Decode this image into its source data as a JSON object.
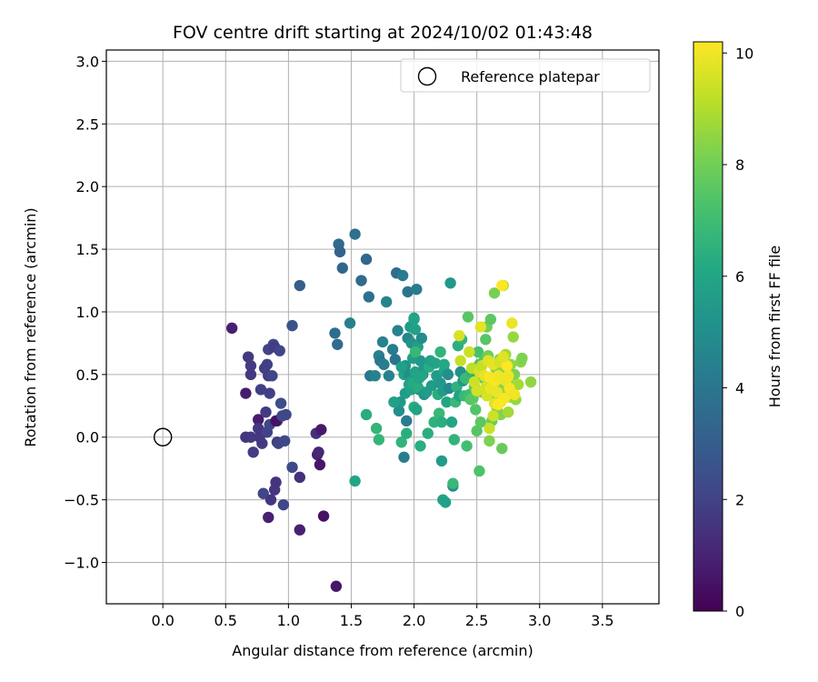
{
  "chart_data": {
    "type": "scatter",
    "title": "FOV centre drift starting at 2024/10/02 01:43:48",
    "xlabel": "Angular distance from reference (arcmin)",
    "ylabel": "Rotation from reference (arcmin)",
    "xlim": [
      -0.45,
      3.95
    ],
    "ylim": [
      -1.33,
      3.09
    ],
    "xticks": [
      "0.0",
      "0.5",
      "1.0",
      "1.5",
      "2.0",
      "2.5",
      "3.0",
      "3.5"
    ],
    "xtick_values": [
      0.0,
      0.5,
      1.0,
      1.5,
      2.0,
      2.5,
      3.0,
      3.5
    ],
    "yticks": [
      "−1.0",
      "−0.5",
      "0.0",
      "0.5",
      "1.0",
      "1.5",
      "2.0",
      "2.5",
      "3.0"
    ],
    "ytick_values": [
      -1.0,
      -0.5,
      0.0,
      0.5,
      1.0,
      1.5,
      2.0,
      2.5,
      3.0
    ],
    "grid": true,
    "legend": {
      "placement": "top-right",
      "entries": [
        {
          "label": "Reference platepar",
          "marker": "open-circle",
          "x": 0.0,
          "y": 0.0
        }
      ]
    },
    "colorbar": {
      "label": "Hours from first FF file",
      "range": [
        0,
        10.2
      ],
      "ticks": [
        "0",
        "2",
        "4",
        "6",
        "8",
        "10"
      ],
      "tick_values": [
        0,
        2,
        4,
        6,
        8,
        10
      ],
      "colormap": "viridis"
    },
    "points_fields": [
      "x",
      "y",
      "hours"
    ],
    "points": [
      [
        0.55,
        0.87,
        0.9
      ],
      [
        0.66,
        0.35,
        0.8
      ],
      [
        0.68,
        0.64,
        1.7
      ],
      [
        0.7,
        0.57,
        1.8
      ],
      [
        0.7,
        0.5,
        1.7
      ],
      [
        0.66,
        0.0,
        1.6
      ],
      [
        0.7,
        0.0,
        1.7
      ],
      [
        0.72,
        -0.12,
        1.8
      ],
      [
        0.76,
        0.14,
        0.8
      ],
      [
        0.76,
        0.07,
        1.6
      ],
      [
        0.77,
        0.0,
        1.6
      ],
      [
        0.78,
        0.38,
        1.9
      ],
      [
        0.79,
        -0.05,
        1.7
      ],
      [
        0.8,
        -0.45,
        2.1
      ],
      [
        0.81,
        0.55,
        1.9
      ],
      [
        0.82,
        0.2,
        1.8
      ],
      [
        0.83,
        0.04,
        2.0
      ],
      [
        0.83,
        0.58,
        1.9
      ],
      [
        0.84,
        0.49,
        1.8
      ],
      [
        0.84,
        0.7,
        2.0
      ],
      [
        0.84,
        -0.64,
        0.9
      ],
      [
        0.85,
        0.35,
        1.9
      ],
      [
        0.85,
        0.1,
        2.2
      ],
      [
        0.86,
        -0.5,
        1.6
      ],
      [
        0.87,
        0.49,
        2.1
      ],
      [
        0.88,
        0.74,
        2.2
      ],
      [
        0.89,
        0.72,
        1.8
      ],
      [
        0.89,
        -0.42,
        1.6
      ],
      [
        0.9,
        -0.36,
        1.5
      ],
      [
        0.91,
        0.13,
        1.4
      ],
      [
        0.9,
        0.13,
        0.5
      ],
      [
        0.91,
        -0.04,
        1.8
      ],
      [
        0.92,
        -0.05,
        2.0
      ],
      [
        0.93,
        0.69,
        2.1
      ],
      [
        0.94,
        0.27,
        2.4
      ],
      [
        0.95,
        0.17,
        2.2
      ],
      [
        0.96,
        -0.54,
        2.1
      ],
      [
        0.97,
        -0.03,
        2.2
      ],
      [
        0.98,
        0.18,
        2.2
      ],
      [
        1.03,
        0.89,
        2.6
      ],
      [
        1.03,
        -0.24,
        2.3
      ],
      [
        1.09,
        1.21,
        3.0
      ],
      [
        1.09,
        -0.32,
        1.4
      ],
      [
        1.09,
        -0.74,
        0.9
      ],
      [
        1.22,
        0.03,
        1.4
      ],
      [
        1.23,
        -0.14,
        0.9
      ],
      [
        1.24,
        -0.12,
        1.1
      ],
      [
        1.25,
        -0.22,
        0.6
      ],
      [
        1.26,
        0.06,
        0.7
      ],
      [
        1.28,
        -0.63,
        0.5
      ],
      [
        1.37,
        0.83,
        3.6
      ],
      [
        1.39,
        0.74,
        3.6
      ],
      [
        1.4,
        1.54,
        3.5
      ],
      [
        1.41,
        1.48,
        3.2
      ],
      [
        1.43,
        1.35,
        3.4
      ],
      [
        1.49,
        0.91,
        4.4
      ],
      [
        1.53,
        1.62,
        3.8
      ],
      [
        1.58,
        1.25,
        3.5
      ],
      [
        1.62,
        1.42,
        3.4
      ],
      [
        1.64,
        1.12,
        3.8
      ],
      [
        1.65,
        0.49,
        4.0
      ],
      [
        1.69,
        0.49,
        4.5
      ],
      [
        1.72,
        0.65,
        4.5
      ],
      [
        1.73,
        0.61,
        4.0
      ],
      [
        1.75,
        0.76,
        4.5
      ],
      [
        1.76,
        0.58,
        4.3
      ],
      [
        1.78,
        1.08,
        4.6
      ],
      [
        1.83,
        0.7,
        4.3
      ],
      [
        1.85,
        0.62,
        3.9
      ],
      [
        1.86,
        1.31,
        3.6
      ],
      [
        1.87,
        0.85,
        4.5
      ],
      [
        1.88,
        0.21,
        5.0
      ],
      [
        1.89,
        0.28,
        5.4
      ],
      [
        1.91,
        1.29,
        4.2
      ],
      [
        1.92,
        0.5,
        5.9
      ],
      [
        1.93,
        0.57,
        5.2
      ],
      [
        1.94,
        0.13,
        4.3
      ],
      [
        1.95,
        0.79,
        4.6
      ],
      [
        1.95,
        1.16,
        3.9
      ],
      [
        1.96,
        0.5,
        5.0
      ],
      [
        1.97,
        0.88,
        5.5
      ],
      [
        1.98,
        0.75,
        5.2
      ],
      [
        1.99,
        0.63,
        5.7
      ],
      [
        2.0,
        0.95,
        5.6
      ],
      [
        2.0,
        0.94,
        5.9
      ],
      [
        2.01,
        0.86,
        5.8
      ],
      [
        2.01,
        0.52,
        5.9
      ],
      [
        2.02,
        1.18,
        4.2
      ],
      [
        2.03,
        0.72,
        5.7
      ],
      [
        2.04,
        0.38,
        5.2
      ],
      [
        2.05,
        0.61,
        5.4
      ],
      [
        2.06,
        0.79,
        4.9
      ],
      [
        2.07,
        0.5,
        5.0
      ],
      [
        2.08,
        0.55,
        5.4
      ],
      [
        1.84,
        0.28,
        5.8
      ],
      [
        1.9,
        0.56,
        5.7
      ],
      [
        1.9,
        -0.04,
        6.6
      ],
      [
        1.92,
        -0.16,
        4.3
      ],
      [
        1.93,
        0.35,
        5.6
      ],
      [
        1.94,
        0.03,
        6.4
      ],
      [
        1.96,
        0.42,
        6.1
      ],
      [
        1.97,
        0.44,
        5.8
      ],
      [
        1.98,
        0.38,
        5.9
      ],
      [
        1.99,
        0.43,
        6.2
      ],
      [
        2.0,
        0.24,
        6.3
      ],
      [
        2.01,
        0.68,
        6.8
      ],
      [
        2.02,
        0.22,
        5.9
      ],
      [
        2.03,
        0.4,
        6.3
      ],
      [
        2.04,
        0.47,
        5.9
      ],
      [
        2.05,
        -0.07,
        6.4
      ],
      [
        2.06,
        0.49,
        6.0
      ],
      [
        2.08,
        0.34,
        5.2
      ],
      [
        2.1,
        0.36,
        5.6
      ],
      [
        2.11,
        0.03,
        6.4
      ],
      [
        2.12,
        0.56,
        6.3
      ],
      [
        2.13,
        0.61,
        5.8
      ],
      [
        2.14,
        0.41,
        5.6
      ],
      [
        2.16,
        0.12,
        6.5
      ],
      [
        2.17,
        0.59,
        5.9
      ],
      [
        2.18,
        0.49,
        5.5
      ],
      [
        2.19,
        0.34,
        6.3
      ],
      [
        2.2,
        0.19,
        6.8
      ],
      [
        2.21,
        0.43,
        5.4
      ],
      [
        2.21,
        0.68,
        6.6
      ],
      [
        2.22,
        0.12,
        6.4
      ],
      [
        2.22,
        -0.19,
        5.6
      ],
      [
        2.23,
        0.37,
        5.6
      ],
      [
        2.24,
        0.53,
        6.0
      ],
      [
        2.24,
        0.58,
        6.1
      ],
      [
        2.25,
        -0.52,
        5.7
      ],
      [
        2.26,
        0.28,
        6.0
      ],
      [
        2.27,
        0.5,
        5.0
      ],
      [
        2.28,
        0.39,
        4.8
      ],
      [
        2.29,
        1.23,
        5.4
      ],
      [
        2.3,
        0.12,
        6.0
      ],
      [
        2.31,
        -0.39,
        4.8
      ],
      [
        2.32,
        -0.02,
        6.6
      ],
      [
        2.33,
        0.28,
        6.8
      ],
      [
        2.34,
        0.4,
        6.5
      ],
      [
        2.35,
        0.73,
        6.4
      ],
      [
        2.36,
        0.33,
        5.8
      ],
      [
        2.37,
        0.52,
        5.1
      ],
      [
        2.38,
        0.78,
        6.6
      ],
      [
        2.39,
        0.45,
        5.4
      ],
      [
        2.4,
        0.33,
        6.8
      ],
      [
        2.41,
        0.47,
        6.9
      ],
      [
        2.42,
        -0.07,
        7.1
      ],
      [
        2.43,
        0.96,
        7.5
      ],
      [
        2.44,
        0.34,
        7.0
      ],
      [
        2.45,
        0.3,
        7.4
      ],
      [
        2.46,
        0.52,
        6.5
      ],
      [
        2.47,
        0.31,
        7.6
      ],
      [
        2.48,
        0.4,
        7.6
      ],
      [
        2.49,
        0.22,
        7.4
      ],
      [
        2.5,
        0.05,
        7.5
      ],
      [
        2.51,
        0.68,
        7.2
      ],
      [
        2.52,
        0.58,
        7.3
      ],
      [
        2.52,
        -0.27,
        7.3
      ],
      [
        2.53,
        0.12,
        7.6
      ],
      [
        2.54,
        0.36,
        7.8
      ],
      [
        2.55,
        0.47,
        7.8
      ],
      [
        2.56,
        0.62,
        7.4
      ],
      [
        2.57,
        0.78,
        7.5
      ],
      [
        2.58,
        0.88,
        8.0
      ],
      [
        2.59,
        0.65,
        8.0
      ],
      [
        2.6,
        -0.03,
        8.2
      ],
      [
        2.6,
        0.44,
        8.0
      ],
      [
        2.61,
        0.94,
        7.6
      ],
      [
        2.62,
        0.13,
        7.8
      ],
      [
        2.63,
        0.33,
        8.3
      ],
      [
        2.64,
        1.15,
        8.1
      ],
      [
        2.65,
        0.55,
        8.2
      ],
      [
        2.66,
        0.23,
        8.3
      ],
      [
        2.67,
        0.41,
        8.4
      ],
      [
        2.68,
        0.62,
        8.2
      ],
      [
        2.69,
        0.18,
        8.3
      ],
      [
        2.7,
        0.52,
        8.5
      ],
      [
        2.7,
        -0.09,
        7.8
      ],
      [
        2.71,
        1.21,
        8.9
      ],
      [
        2.72,
        0.34,
        8.6
      ],
      [
        2.73,
        0.66,
        8.8
      ],
      [
        2.74,
        0.41,
        8.4
      ],
      [
        2.75,
        0.2,
        8.8
      ],
      [
        2.76,
        0.32,
        8.7
      ],
      [
        2.77,
        0.58,
        8.5
      ],
      [
        2.78,
        0.41,
        8.6
      ],
      [
        2.79,
        0.8,
        8.6
      ],
      [
        2.8,
        0.5,
        8.2
      ],
      [
        2.81,
        0.3,
        8.6
      ],
      [
        2.83,
        0.42,
        8.8
      ],
      [
        2.85,
        0.6,
        8.4
      ],
      [
        2.86,
        0.63,
        8.2
      ],
      [
        2.93,
        0.44,
        8.5
      ],
      [
        2.37,
        0.61,
        9.3
      ],
      [
        2.44,
        0.68,
        9.4
      ],
      [
        2.46,
        0.55,
        9.2
      ],
      [
        2.48,
        0.44,
        9.4
      ],
      [
        2.5,
        0.37,
        9.5
      ],
      [
        2.52,
        0.52,
        9.6
      ],
      [
        2.54,
        0.57,
        9.3
      ],
      [
        2.56,
        0.49,
        9.8
      ],
      [
        2.57,
        0.4,
        9.5
      ],
      [
        2.58,
        0.33,
        9.6
      ],
      [
        2.59,
        0.61,
        9.7
      ],
      [
        2.6,
        0.07,
        9.4
      ],
      [
        2.61,
        0.39,
        9.9
      ],
      [
        2.62,
        0.47,
        10.0
      ],
      [
        2.63,
        0.58,
        9.8
      ],
      [
        2.64,
        0.27,
        9.7
      ],
      [
        2.65,
        0.45,
        10.1
      ],
      [
        2.66,
        0.36,
        9.9
      ],
      [
        2.67,
        0.49,
        10.0
      ],
      [
        2.68,
        0.6,
        9.6
      ],
      [
        2.69,
        0.28,
        9.8
      ],
      [
        2.7,
        1.21,
        10.2
      ],
      [
        2.72,
        0.31,
        10.1
      ],
      [
        2.73,
        0.45,
        9.9
      ],
      [
        2.74,
        0.57,
        10.2
      ],
      [
        2.75,
        0.49,
        10.0
      ],
      [
        2.76,
        0.39,
        10.1
      ],
      [
        2.78,
        0.91,
        9.9
      ],
      [
        2.8,
        0.34,
        10.0
      ],
      [
        2.36,
        0.81,
        9.6
      ],
      [
        2.6,
        0.48,
        10.1
      ],
      [
        2.63,
        0.17,
        9.4
      ],
      [
        2.71,
        0.64,
        9.7
      ],
      [
        2.53,
        0.88,
        9.8
      ],
      [
        2.67,
        0.26,
        10.2
      ],
      [
        1.53,
        -0.35,
        6.0
      ],
      [
        1.62,
        0.18,
        6.3
      ],
      [
        1.7,
        0.07,
        6.7
      ],
      [
        1.72,
        -0.02,
        6.7
      ],
      [
        1.8,
        0.49,
        4.5
      ],
      [
        2.31,
        -0.37,
        6.8
      ],
      [
        2.23,
        -0.5,
        5.8
      ],
      [
        1.38,
        -1.19,
        0.6
      ]
    ]
  }
}
